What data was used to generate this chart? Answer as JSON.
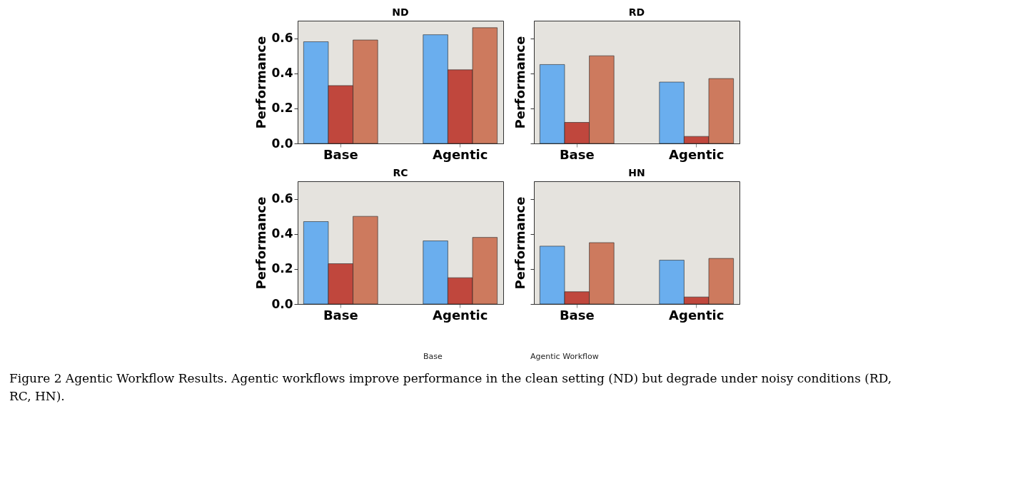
{
  "chart_data": [
    {
      "type": "bar",
      "title": "ND",
      "ylabel": "Performance",
      "categories": [
        "Base",
        "Agentic"
      ],
      "ylim": [
        0,
        0.7
      ],
      "yticks": [
        {
          "value": 0,
          "label": "0.0"
        },
        0.2,
        0.4,
        0.6
      ],
      "grid": false,
      "legend": false,
      "series": [
        {
          "color": "#6aaeee",
          "values": [
            0.58,
            0.62
          ]
        },
        {
          "color": "#c0473d",
          "values": [
            0.33,
            0.42
          ]
        },
        {
          "color": "#cd7a5e",
          "values": [
            0.59,
            0.66
          ]
        }
      ]
    },
    {
      "type": "bar",
      "title": "RD",
      "ylabel": "Performance",
      "categories": [
        "Base",
        "Agentic"
      ],
      "ylim": [
        0,
        0.7
      ],
      "yticks": [
        0,
        0.2,
        0.4,
        0.6
      ],
      "grid": false,
      "legend": false,
      "tick_labels": "x",
      "series": [
        {
          "color": "#6aaeee",
          "values": [
            0.45,
            0.35
          ]
        },
        {
          "color": "#c0473d",
          "values": [
            0.12,
            0.04
          ]
        },
        {
          "color": "#cd7a5e",
          "values": [
            0.5,
            0.37
          ]
        }
      ]
    },
    {
      "type": "bar",
      "title": "RC",
      "ylabel": "Performance",
      "categories": [
        "Base",
        "Agentic"
      ],
      "ylim": [
        0,
        0.7
      ],
      "yticks": [
        {
          "value": 0,
          "label": "0.0"
        },
        0.2,
        0.4,
        0.6
      ],
      "grid": false,
      "legend": false,
      "series": [
        {
          "color": "#6aaeee",
          "values": [
            0.47,
            0.36
          ]
        },
        {
          "color": "#c0473d",
          "values": [
            0.23,
            0.15
          ]
        },
        {
          "color": "#cd7a5e",
          "values": [
            0.5,
            0.38
          ]
        }
      ]
    },
    {
      "type": "bar",
      "title": "HN",
      "ylabel": "Performance",
      "categories": [
        "Base",
        "Agentic"
      ],
      "ylim": [
        0,
        0.7
      ],
      "yticks": [
        0,
        0.2,
        0.4,
        0.6
      ],
      "grid": false,
      "legend": false,
      "tick_labels": "x",
      "series": [
        {
          "color": "#6aaeee",
          "values": [
            0.33,
            0.25
          ]
        },
        {
          "color": "#c0473d",
          "values": [
            0.07,
            0.04
          ]
        },
        {
          "color": "#cd7a5e",
          "values": [
            0.35,
            0.26
          ]
        }
      ],
      "annotations": [
        "Base",
        "Agentic Workflow",
        "Figure 2 Agentic Workflow Results. Agentic workflows improve performance in the clean setting (ND) but degrade under noisy conditions (RD, RC, HN)."
      ]
    }
  ]
}
